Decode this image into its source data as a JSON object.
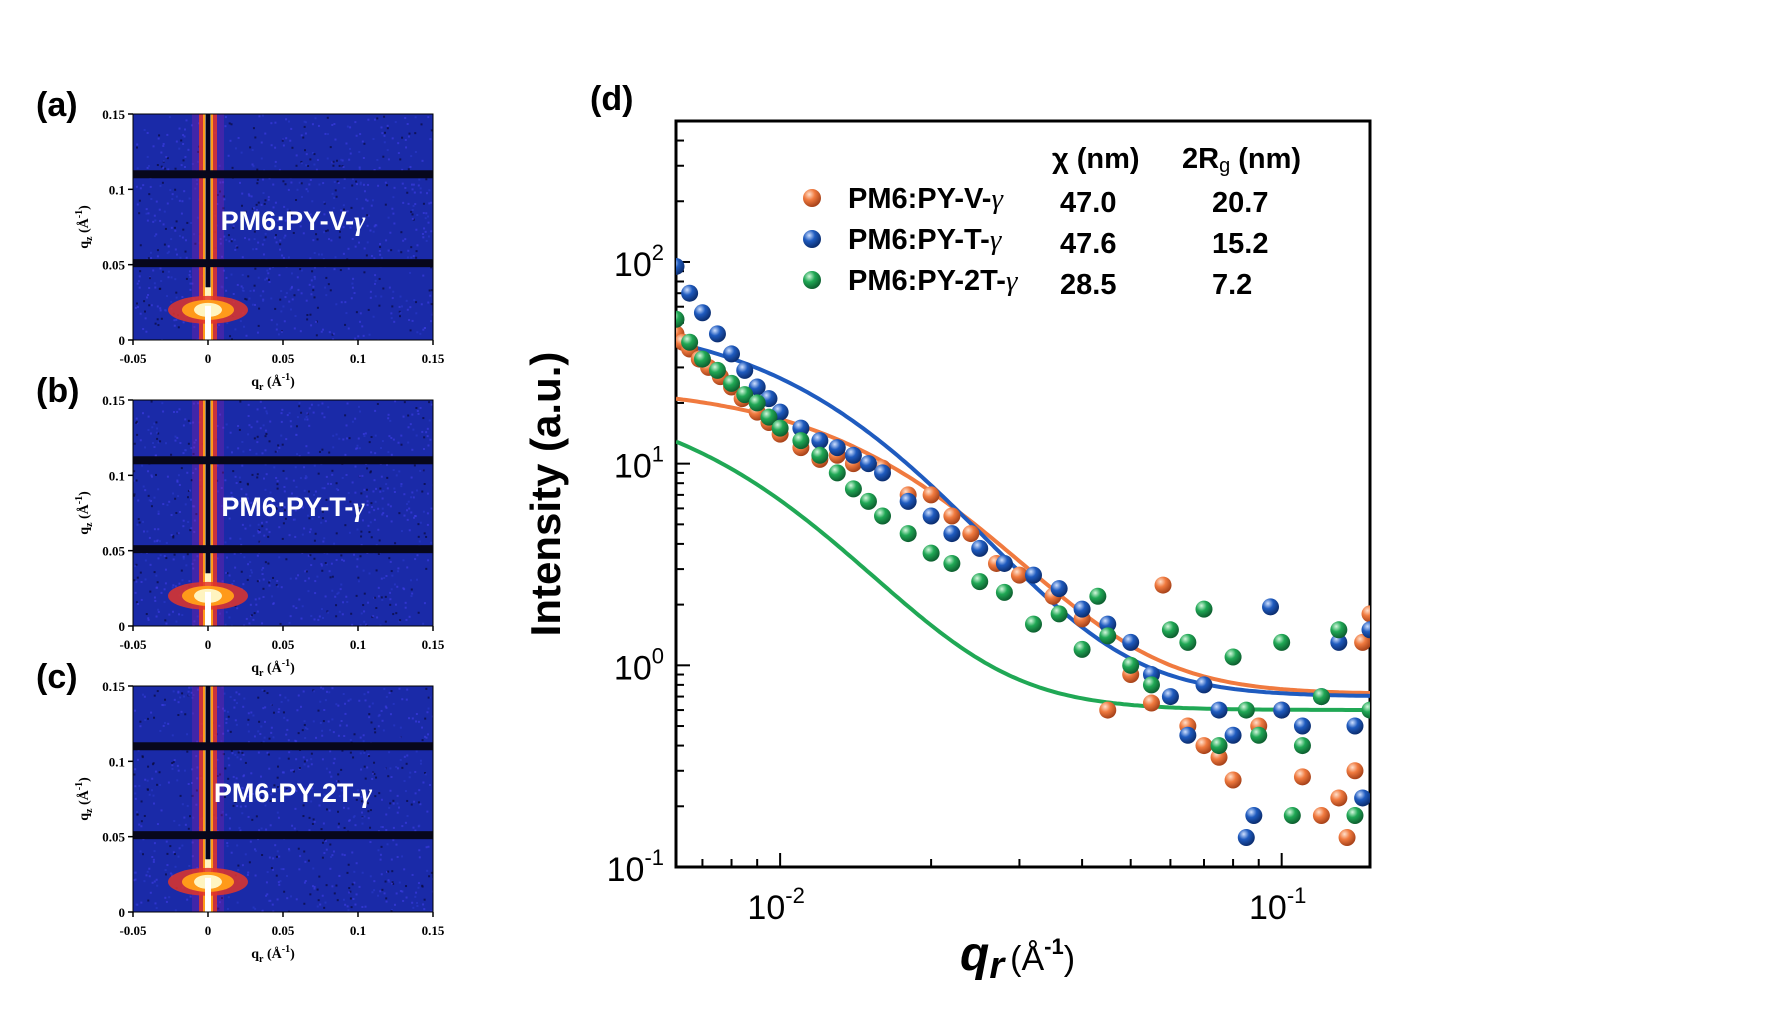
{
  "panels": [
    {
      "label": "(a)",
      "sample": "PM6:PY-V-",
      "gamma": "γ"
    },
    {
      "label": "(b)",
      "sample": "PM6:PY-T-",
      "gamma": "γ"
    },
    {
      "label": "(c)",
      "sample": "PM6:PY-2T-",
      "gamma": "γ"
    }
  ],
  "giwaxs": {
    "x_ticks": [
      "-0.05",
      "0",
      "0.05",
      "0.1",
      "0.15"
    ],
    "y_ticks": [
      "0",
      "0.05",
      "0.1",
      "0.15"
    ],
    "xlabel": "q",
    "xlabel_sub": "r",
    "xlabel_unit": "(Å",
    "xlabel_exp": "-1",
    "xlabel_close": ")",
    "ylabel": "q",
    "ylabel_sub": "z",
    "ylabel_unit": "(Å",
    "ylabel_exp": "-1",
    "ylabel_close": ")",
    "colormap": [
      "#0a0a3c",
      "#1a2aa8",
      "#3b3ce0",
      "#8a1fb0",
      "#e2352a",
      "#ff9a1a",
      "#fff4c0"
    ]
  },
  "main_panel": {
    "label": "(d)",
    "table_headers": [
      "χ (nm)",
      "2R",
      "g",
      " (nm)"
    ],
    "legend": [
      {
        "name": "PM6:PY-V-",
        "gamma": "γ",
        "chi": "47.0",
        "rg2": "20.7",
        "color": "#f07a3f"
      },
      {
        "name": "PM6:PY-T-",
        "gamma": "γ",
        "chi": "47.6",
        "rg2": "15.2",
        "color": "#1f5bbf"
      },
      {
        "name": "PM6:PY-2T-",
        "gamma": "γ",
        "chi": "28.5",
        "rg2": "7.2",
        "color": "#20a855"
      }
    ],
    "ylabel": "Intensity (a.u.)",
    "xlabel_q": "q",
    "xlabel_r": "r",
    "xlabel_unit": "(Å",
    "xlabel_exp": "-1",
    "xlabel_close": ")",
    "y_tick_labels": [
      {
        "base": "10",
        "exp": "-1"
      },
      {
        "base": "10",
        "exp": "0"
      },
      {
        "base": "10",
        "exp": "1"
      },
      {
        "base": "10",
        "exp": "2"
      }
    ],
    "x_tick_labels": [
      {
        "base": "10",
        "exp": "-2"
      },
      {
        "base": "10",
        "exp": "-1"
      }
    ]
  },
  "chart_data": {
    "type": "scatter",
    "x_scale": "log",
    "y_scale": "log",
    "xlim": [
      0.0062,
      0.15
    ],
    "ylim": [
      0.1,
      500
    ],
    "series": [
      {
        "name": "PM6:PY-V-γ",
        "color": "#f07a3f",
        "fit": {
          "A": 0.024,
          "B": 0.02,
          "L": 0.0209,
          "C": 0.72
        },
        "points": [
          [
            0.0062,
            44
          ],
          [
            0.0064,
            40
          ],
          [
            0.0066,
            37
          ],
          [
            0.0069,
            33
          ],
          [
            0.0072,
            30
          ],
          [
            0.0076,
            27
          ],
          [
            0.008,
            24
          ],
          [
            0.0084,
            21
          ],
          [
            0.009,
            18
          ],
          [
            0.0095,
            16
          ],
          [
            0.01,
            14
          ],
          [
            0.011,
            12
          ],
          [
            0.012,
            10.5
          ],
          [
            0.013,
            11
          ],
          [
            0.014,
            10
          ],
          [
            0.016,
            9.5
          ],
          [
            0.018,
            7
          ],
          [
            0.02,
            7
          ],
          [
            0.022,
            5.5
          ],
          [
            0.024,
            4.5
          ],
          [
            0.027,
            3.2
          ],
          [
            0.03,
            2.8
          ],
          [
            0.035,
            2.2
          ],
          [
            0.04,
            1.7
          ],
          [
            0.045,
            0.6
          ],
          [
            0.05,
            0.9
          ],
          [
            0.055,
            0.65
          ],
          [
            0.058,
            2.5
          ],
          [
            0.065,
            0.5
          ],
          [
            0.07,
            0.4
          ],
          [
            0.075,
            0.35
          ],
          [
            0.08,
            0.27
          ],
          [
            0.09,
            0.5
          ],
          [
            0.1,
            0.6
          ],
          [
            0.11,
            0.28
          ],
          [
            0.12,
            0.18
          ],
          [
            0.13,
            0.22
          ],
          [
            0.135,
            0.14
          ],
          [
            0.14,
            0.3
          ],
          [
            0.145,
            1.3
          ],
          [
            0.15,
            1.8
          ]
        ]
      },
      {
        "name": "PM6:PY-T-γ",
        "color": "#1f5bbf",
        "fit": {
          "A": 0.053,
          "B": 0.04,
          "L": 0.0152,
          "C": 0.7
        },
        "points": [
          [
            0.0062,
            95
          ],
          [
            0.0066,
            70
          ],
          [
            0.007,
            56
          ],
          [
            0.0075,
            44
          ],
          [
            0.008,
            35
          ],
          [
            0.0085,
            29
          ],
          [
            0.009,
            24
          ],
          [
            0.0095,
            21
          ],
          [
            0.01,
            18
          ],
          [
            0.011,
            15
          ],
          [
            0.012,
            13
          ],
          [
            0.013,
            12
          ],
          [
            0.014,
            11
          ],
          [
            0.015,
            10
          ],
          [
            0.016,
            9
          ],
          [
            0.018,
            6.5
          ],
          [
            0.02,
            5.5
          ],
          [
            0.022,
            4.5
          ],
          [
            0.025,
            3.8
          ],
          [
            0.028,
            3.2
          ],
          [
            0.032,
            2.8
          ],
          [
            0.036,
            2.4
          ],
          [
            0.04,
            1.9
          ],
          [
            0.045,
            1.6
          ],
          [
            0.05,
            1.3
          ],
          [
            0.055,
            0.9
          ],
          [
            0.06,
            0.7
          ],
          [
            0.065,
            0.45
          ],
          [
            0.07,
            0.8
          ],
          [
            0.075,
            0.6
          ],
          [
            0.08,
            0.45
          ],
          [
            0.085,
            0.14
          ],
          [
            0.088,
            0.18
          ],
          [
            0.095,
            1.95
          ],
          [
            0.1,
            0.6
          ],
          [
            0.11,
            0.5
          ],
          [
            0.12,
            0.7
          ],
          [
            0.13,
            1.3
          ],
          [
            0.14,
            0.5
          ],
          [
            0.145,
            0.22
          ],
          [
            0.15,
            1.5
          ]
        ]
      },
      {
        "name": "PM6:PY-2T-γ",
        "color": "#20a855",
        "fit": {
          "A": 0.023,
          "B": 0.0,
          "L": 0.0102,
          "C": 0.6
        },
        "points": [
          [
            0.0062,
            52
          ],
          [
            0.0066,
            40
          ],
          [
            0.007,
            33
          ],
          [
            0.0075,
            29
          ],
          [
            0.008,
            25
          ],
          [
            0.0085,
            22
          ],
          [
            0.009,
            20
          ],
          [
            0.0095,
            17
          ],
          [
            0.01,
            15
          ],
          [
            0.011,
            13
          ],
          [
            0.012,
            11
          ],
          [
            0.013,
            9
          ],
          [
            0.014,
            7.5
          ],
          [
            0.015,
            6.5
          ],
          [
            0.016,
            5.5
          ],
          [
            0.018,
            4.5
          ],
          [
            0.02,
            3.6
          ],
          [
            0.022,
            3.2
          ],
          [
            0.025,
            2.6
          ],
          [
            0.028,
            2.3
          ],
          [
            0.032,
            1.6
          ],
          [
            0.036,
            1.8
          ],
          [
            0.04,
            1.2
          ],
          [
            0.043,
            2.2
          ],
          [
            0.045,
            1.4
          ],
          [
            0.05,
            1.0
          ],
          [
            0.055,
            0.8
          ],
          [
            0.06,
            1.5
          ],
          [
            0.065,
            1.3
          ],
          [
            0.07,
            1.9
          ],
          [
            0.075,
            0.4
          ],
          [
            0.08,
            1.1
          ],
          [
            0.085,
            0.6
          ],
          [
            0.09,
            0.45
          ],
          [
            0.1,
            1.3
          ],
          [
            0.105,
            0.18
          ],
          [
            0.11,
            0.4
          ],
          [
            0.12,
            0.7
          ],
          [
            0.13,
            1.5
          ],
          [
            0.14,
            0.18
          ],
          [
            0.15,
            0.6
          ]
        ]
      }
    ]
  }
}
